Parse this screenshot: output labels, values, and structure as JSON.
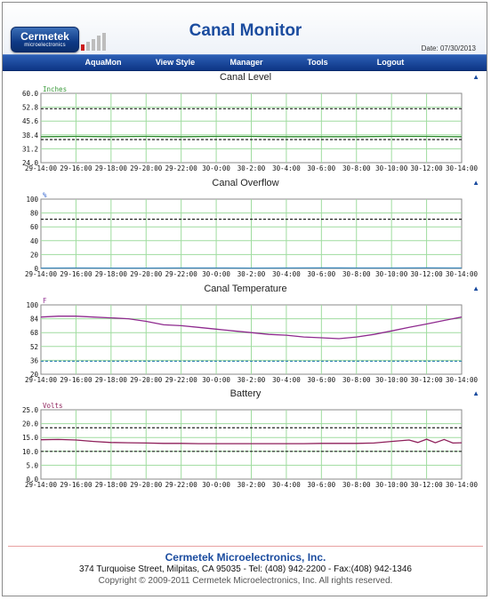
{
  "header": {
    "logo_main": "Cermetek",
    "logo_sub": "microelectronics",
    "title": "Canal Monitor",
    "date": "Date: 07/30/2013"
  },
  "nav": {
    "items": [
      {
        "label": "AquaMon"
      },
      {
        "label": "View Style"
      },
      {
        "label": "Manager"
      },
      {
        "label": "Tools"
      },
      {
        "label": "Logout"
      }
    ]
  },
  "icons": {
    "collapse": "triangle-up-icon",
    "signal": "signal-bars-icon"
  },
  "colors": {
    "brand_blue": "#1b4c9f",
    "grid_green": "#9fdc9f",
    "level_line": "#2e8b2e",
    "overflow_line": "#3a86b8",
    "temp_line": "#8e2a8e",
    "battery_line": "#8e1f5a",
    "limit_dash": "#222222",
    "limit_dash_temp": "#3a86b8"
  },
  "chart_data": [
    {
      "type": "line",
      "title": "Canal Level",
      "ylabel": "Inches",
      "ylim": [
        24.0,
        60.0
      ],
      "yticks": [
        "60.0",
        "52.8",
        "45.6",
        "38.4",
        "31.2",
        "24.0"
      ],
      "xticks": [
        "29-14:00",
        "29-16:00",
        "29-18:00",
        "29-20:00",
        "29-22:00",
        "30-0:00",
        "30-2:00",
        "30-4:00",
        "30-6:00",
        "30-8:00",
        "30-10:00",
        "30-12:00",
        "30-14:00"
      ],
      "grid": true,
      "x": [
        0,
        2,
        4,
        6,
        8,
        10,
        12,
        14,
        16,
        18,
        20,
        22,
        24
      ],
      "series": [
        {
          "values": [
            37.5,
            37.6,
            37.5,
            37.6,
            37.5,
            37.6,
            37.6,
            37.5,
            37.5,
            37.5,
            37.6,
            37.6,
            37.5
          ]
        }
      ],
      "limits": [
        52.0,
        36.0
      ]
    },
    {
      "type": "line",
      "title": "Canal Overflow",
      "ylabel": "%",
      "ylim": [
        0,
        100
      ],
      "yticks": [
        "100",
        "80",
        "60",
        "40",
        "20",
        "0"
      ],
      "xticks": [
        "29-14:00",
        "29-16:00",
        "29-18:00",
        "29-20:00",
        "29-22:00",
        "30-0:00",
        "30-2:00",
        "30-4:00",
        "30-6:00",
        "30-8:00",
        "30-10:00",
        "30-12:00",
        "30-14:00"
      ],
      "grid": true,
      "x": [
        0,
        2,
        4,
        6,
        8,
        10,
        12,
        14,
        16,
        18,
        20,
        22,
        24
      ],
      "series": [
        {
          "values": [
            0.5,
            0.6,
            0.5,
            0.5,
            0.6,
            0.6,
            0.5,
            0.6,
            0.8,
            0.6,
            0.7,
            0.8,
            0.6
          ]
        }
      ],
      "limits": [
        71.0
      ]
    },
    {
      "type": "line",
      "title": "Canal Temperature",
      "ylabel": "F",
      "ylim": [
        20,
        100
      ],
      "yticks": [
        "100",
        "84",
        "68",
        "52",
        "36",
        "20"
      ],
      "xticks": [
        "29-14:00",
        "29-16:00",
        "29-18:00",
        "29-20:00",
        "29-22:00",
        "30-0:00",
        "30-2:00",
        "30-4:00",
        "30-6:00",
        "30-8:00",
        "30-10:00",
        "30-12:00",
        "30-14:00"
      ],
      "grid": true,
      "x": [
        0,
        1,
        2,
        3,
        4,
        5,
        6,
        7,
        8,
        9,
        10,
        11,
        12,
        13,
        14,
        15,
        16,
        17,
        18,
        19,
        20,
        21,
        22,
        23,
        24
      ],
      "series": [
        {
          "values": [
            86,
            87,
            87,
            86,
            85,
            84,
            81,
            77,
            76,
            74,
            72,
            70,
            68,
            66,
            65,
            63,
            62,
            61,
            63,
            66,
            70,
            74,
            78,
            82,
            86
          ]
        }
      ],
      "limits": [
        35.0
      ]
    },
    {
      "type": "line",
      "title": "Battery",
      "ylabel": "Volts",
      "ylim": [
        0.0,
        25.0
      ],
      "yticks": [
        "25.0",
        "20.0",
        "15.0",
        "10.0",
        "5.0",
        "0.0"
      ],
      "xticks": [
        "29-14:00",
        "29-16:00",
        "29-18:00",
        "29-20:00",
        "29-22:00",
        "30-0:00",
        "30-2:00",
        "30-4:00",
        "30-6:00",
        "30-8:00",
        "30-10:00",
        "30-12:00",
        "30-14:00"
      ],
      "grid": true,
      "x": [
        0,
        1,
        2,
        3,
        4,
        5,
        6,
        7,
        8,
        9,
        10,
        11,
        12,
        13,
        14,
        15,
        16,
        17,
        18,
        19,
        20,
        21,
        21.5,
        22,
        22.5,
        23,
        23.5,
        24
      ],
      "series": [
        {
          "values": [
            14.2,
            14.3,
            14.1,
            13.6,
            13.2,
            13.1,
            13.0,
            12.9,
            12.9,
            12.8,
            12.8,
            12.8,
            12.8,
            12.8,
            12.8,
            12.8,
            12.9,
            12.9,
            12.9,
            13.0,
            13.6,
            14.1,
            13.2,
            14.4,
            13.1,
            14.3,
            13.0,
            13.1
          ]
        }
      ],
      "limits": [
        18.5,
        10.0
      ]
    }
  ],
  "footer": {
    "company": "Cermetek Microelectronics, Inc.",
    "address": "374 Turquoise Street, Milpitas, CA 95035  - Tel: (408) 942-2200  -  Fax:(408) 942-1346",
    "copyright": "Copyright © 2009-2011 Cermetek Microelectronics, Inc.  All rights reserved."
  }
}
